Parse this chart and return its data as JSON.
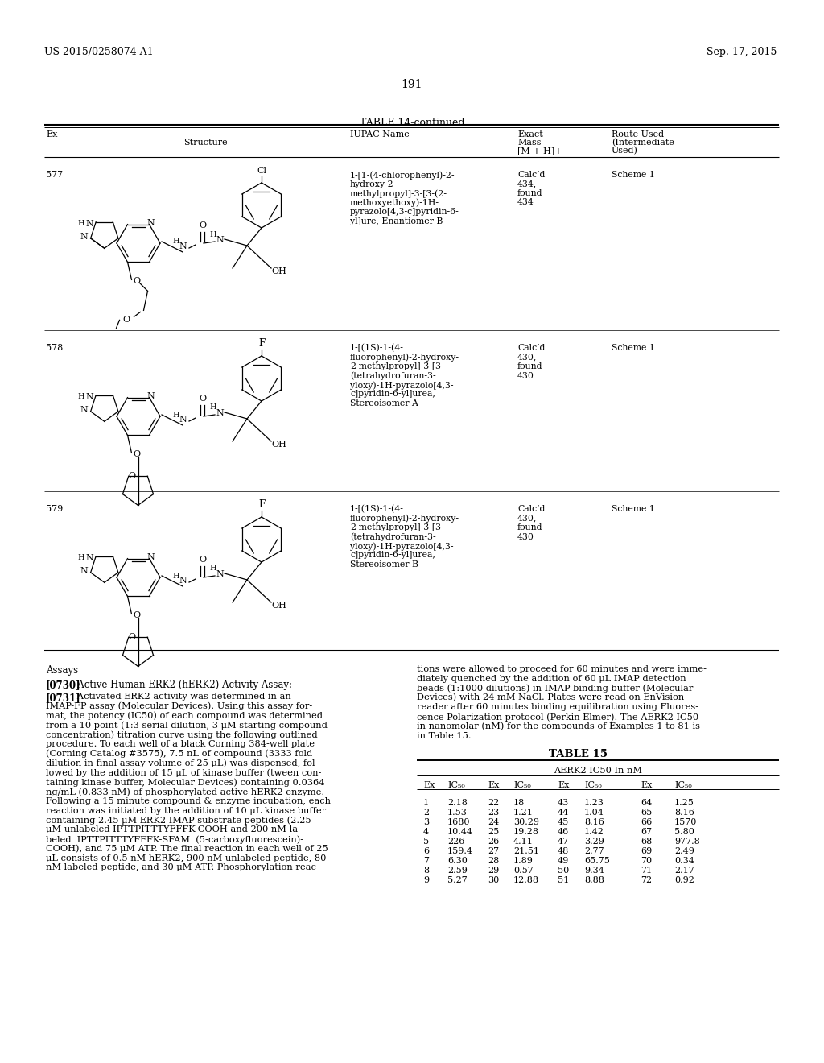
{
  "header_left": "US 2015/0258074 A1",
  "header_right": "Sep. 17, 2015",
  "page_number": "191",
  "table14_title": "TABLE 14-continued",
  "rows": [
    {
      "ex": "577",
      "iupac": [
        "1-[1-(4-chlorophenyl)-2-",
        "hydroxy-2-",
        "methylpropyl]-3-[3-(2-",
        "methoxyethoxy)-1H-",
        "pyrazolo[4,3-c]pyridin-6-",
        "yl]ure, Enantiomer B"
      ],
      "mass": [
        "Calc’d",
        "434,",
        "found",
        "434"
      ],
      "route": "Scheme 1",
      "halogen": "Cl",
      "side_group": "methoxy_ethyl"
    },
    {
      "ex": "578",
      "iupac": [
        "1-[(1S)-1-(4-",
        "fluorophenyl)-2-hydroxy-",
        "2-methylpropyl]-3-[3-",
        "(tetrahydrofuran-3-",
        "yloxy)-1H-pyrazolo[4,3-",
        "c]pyridin-6-yl]urea,",
        "Stereoisomer A"
      ],
      "mass": [
        "Calc’d",
        "430,",
        "found",
        "430"
      ],
      "route": "Scheme 1",
      "halogen": "F",
      "side_group": "thf"
    },
    {
      "ex": "579",
      "iupac": [
        "1-[(1S)-1-(4-",
        "fluorophenyl)-2-hydroxy-",
        "2-methylpropyl]-3-[3-",
        "(tetrahydrofuran-3-",
        "yloxy)-1H-pyrazolo[4,3-",
        "c]pyridin-6-yl]urea,",
        "Stereoisomer B"
      ],
      "mass": [
        "Calc’d",
        "430,",
        "found",
        "430"
      ],
      "route": "Scheme 1",
      "halogen": "F",
      "side_group": "thf"
    }
  ],
  "assays_title": "Assays",
  "left_para_bold": "[0730]",
  "left_para_bold_rest": "   Active Human ERK2 (hERK2) Activity Assay:",
  "left_para2_bold": "[0731]",
  "left_para2_lines": [
    "   Activated ERK2 activity was determined in an",
    "IMAP-FP assay (Molecular Devices). Using this assay for-",
    "mat, the potency (IC50) of each compound was determined",
    "from a 10 point (1:3 serial dilution, 3 μM starting compound",
    "concentration) titration curve using the following outlined",
    "procedure. To each well of a black Corning 384-well plate",
    "(Corning Catalog #3575), 7.5 nL of compound (3333 fold",
    "dilution in final assay volume of 25 μL) was dispensed, fol-",
    "lowed by the addition of 15 μL of kinase buffer (tween con-",
    "taining kinase buffer, Molecular Devices) containing 0.0364",
    "ng/mL (0.833 nM) of phosphorylated active hERK2 enzyme.",
    "Following a 15 minute compound & enzyme incubation, each",
    "reaction was initiated by the addition of 10 μL kinase buffer",
    "containing 2.45 μM ERK2 IMAP substrate peptides (2.25",
    "μM-unlabeled IPTTPITTTYFFFK-COOH and 200 nM-la-",
    "beled  IPTTPITTTYFFFK-SFAM  (5-carboxyfluorescein)-",
    "COOH), and 75 μM ATP. The final reaction in each well of 25",
    "μL consists of 0.5 nM hERK2, 900 nM unlabeled peptide, 80",
    "nM labeled-peptide, and 30 μM ATP. Phosphorylation reac-"
  ],
  "right_para_lines": [
    "tions were allowed to proceed for 60 minutes and were imme-",
    "diately quenched by the addition of 60 μL IMAP detection",
    "beads (1:1000 dilutions) in IMAP binding buffer (Molecular",
    "Devices) with 24 mM NaCl. Plates were read on EnVision",
    "reader after 60 minutes binding equilibration using Fluores-",
    "cence Polarization protocol (Perkin Elmer). The AERK2 IC50",
    "in nanomolar (nM) for the compounds of Examples 1 to 81 is",
    "in Table 15."
  ],
  "table15_title": "TABLE 15",
  "table15_subtitle": "AERK2 IC50 In nM",
  "table15_col_headers": [
    "Ex",
    "IC50",
    "Ex",
    "IC50",
    "Ex",
    "IC50",
    "Ex",
    "IC50"
  ],
  "table15_data": [
    [
      "1",
      "2.18",
      "22",
      "18",
      "43",
      "1.23",
      "64",
      "1.25"
    ],
    [
      "2",
      "1.53",
      "23",
      "1.21",
      "44",
      "1.04",
      "65",
      "8.16"
    ],
    [
      "3",
      "1680",
      "24",
      "30.29",
      "45",
      "8.16",
      "66",
      "1570"
    ],
    [
      "4",
      "10.44",
      "25",
      "19.28",
      "46",
      "1.42",
      "67",
      "5.80"
    ],
    [
      "5",
      "226",
      "26",
      "4.11",
      "47",
      "3.29",
      "68",
      "977.8"
    ],
    [
      "6",
      "159.4",
      "27",
      "21.51",
      "48",
      "2.77",
      "69",
      "2.49"
    ],
    [
      "7",
      "6.30",
      "28",
      "1.89",
      "49",
      "65.75",
      "70",
      "0.34"
    ],
    [
      "8",
      "2.59",
      "29",
      "0.57",
      "50",
      "9.34",
      "71",
      "2.17"
    ],
    [
      "9",
      "5.27",
      "30",
      "12.88",
      "51",
      "8.88",
      "72",
      "0.92"
    ]
  ]
}
